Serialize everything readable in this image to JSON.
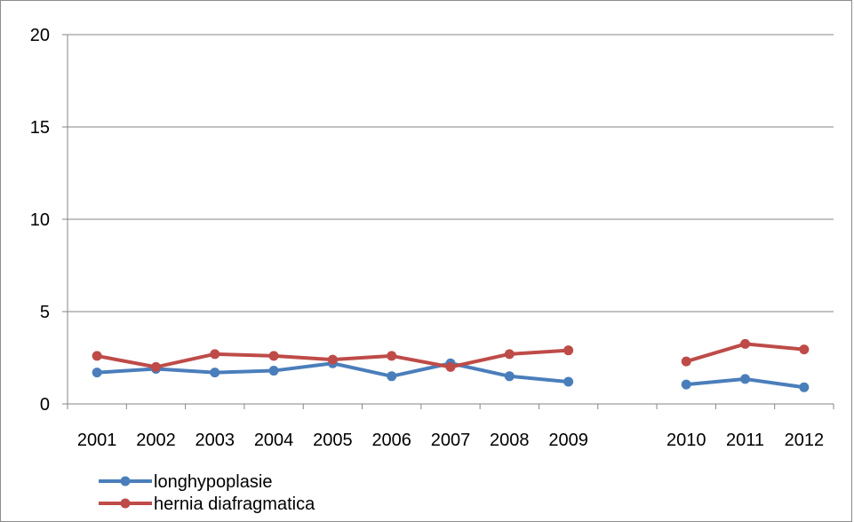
{
  "chart_data": {
    "type": "line",
    "categories": [
      "2001",
      "2002",
      "2003",
      "2004",
      "2005",
      "2006",
      "2007",
      "2008",
      "2009",
      "",
      "2010",
      "2011",
      "2012"
    ],
    "ylim": [
      0,
      20
    ],
    "yticks": [
      0,
      5,
      10,
      15,
      20
    ],
    "ytick_labels": [
      "0",
      "5",
      "10",
      "15",
      "20"
    ],
    "grid": true,
    "legend_position": "bottom-left",
    "series": [
      {
        "name": "longhypoplasie",
        "color": "#4a7ebb",
        "values": [
          1.7,
          1.9,
          1.7,
          1.8,
          2.2,
          1.5,
          2.2,
          1.5,
          1.2,
          null,
          1.05,
          1.35,
          0.9
        ]
      },
      {
        "name": "hernia diafragmatica",
        "color": "#be4b48",
        "values": [
          2.6,
          2.0,
          2.7,
          2.6,
          2.4,
          2.6,
          2.0,
          2.7,
          2.9,
          null,
          2.3,
          3.25,
          2.95
        ]
      }
    ]
  }
}
